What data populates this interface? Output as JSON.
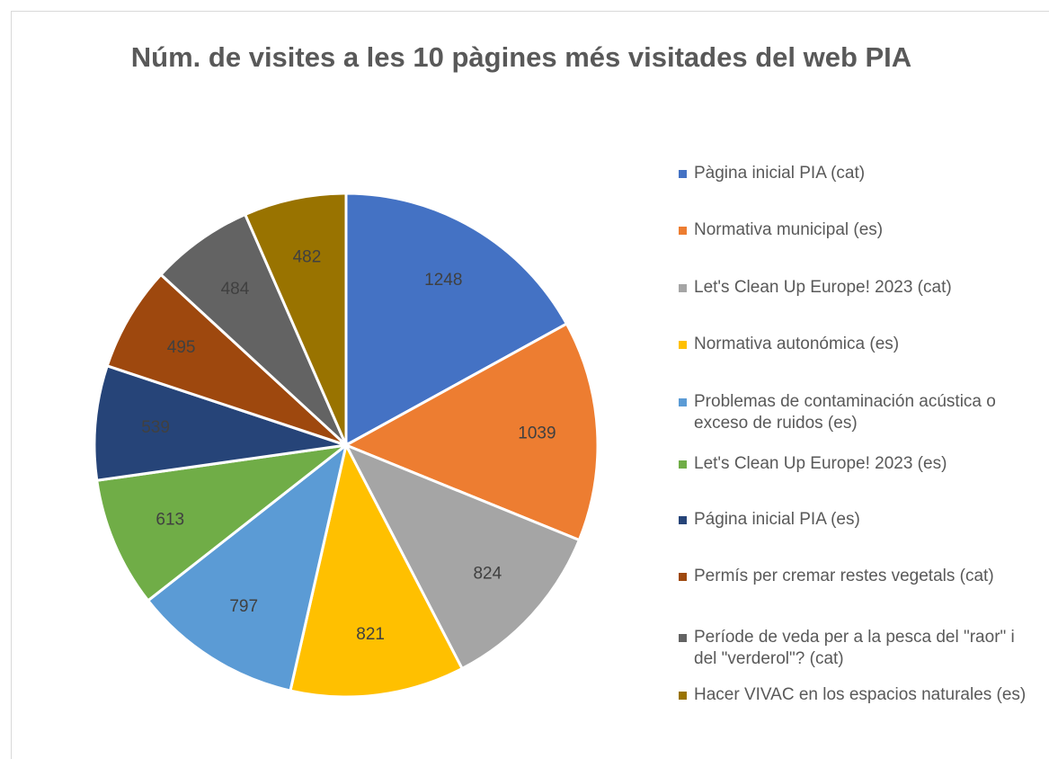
{
  "chart_data": {
    "type": "pie",
    "title": "Núm. de visites a les 10 pàgines més visitades del web PIA",
    "categories": [
      "Pàgina inicial PIA (cat)",
      "Normativa municipal (es)",
      "Let's Clean Up Europe! 2023 (cat)",
      "Normativa autonómica (es)",
      "Problemas de contaminación acústica o exceso de ruidos (es)",
      "Let's Clean Up Europe! 2023 (es)",
      "Página inicial PIA (es)",
      "Permís per cremar restes vegetals (cat)",
      "Període de veda per a la pesca del \"raor\" i del \"verderol\"? (cat)",
      "Hacer VIVAC en los espacios naturales (es)"
    ],
    "values": [
      1248,
      1039,
      824,
      821,
      797,
      613,
      539,
      495,
      484,
      482
    ],
    "colors": [
      "#4472c4",
      "#ed7d31",
      "#a5a5a5",
      "#ffc000",
      "#5b9bd5",
      "#70ad47",
      "#264478",
      "#9e480e",
      "#636363",
      "#997300"
    ],
    "legend": "right"
  }
}
